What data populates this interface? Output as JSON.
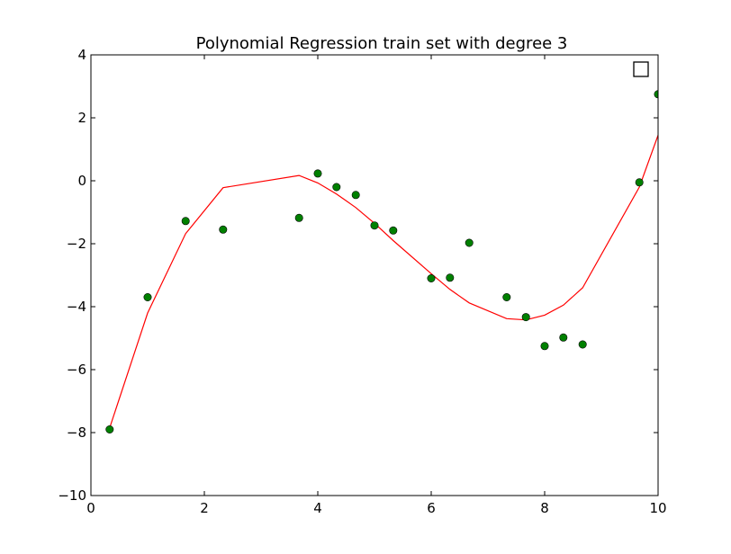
{
  "chart_data": {
    "type": "scatter",
    "title": "Polynomial Regression train set with degree 3",
    "xlabel": "",
    "ylabel": "",
    "xlim": [
      0,
      10
    ],
    "ylim": [
      -10,
      4
    ],
    "xticks": [
      0,
      2,
      4,
      6,
      8,
      10
    ],
    "xtick_labels": [
      "0",
      "2",
      "4",
      "6",
      "8",
      "10"
    ],
    "yticks": [
      -10,
      -8,
      -6,
      -4,
      -2,
      0,
      2,
      4
    ],
    "ytick_labels": [
      "−10",
      "−8",
      "−6",
      "−4",
      "−2",
      "0",
      "2",
      "4"
    ],
    "grid": false,
    "legend": {
      "placement": "upper-right",
      "entries": []
    },
    "series": [
      {
        "kind": "points",
        "color": "#008000",
        "x": [
          0.33,
          1.0,
          1.67,
          2.33,
          3.67,
          4.0,
          4.33,
          4.67,
          5.0,
          5.33,
          6.0,
          6.33,
          6.67,
          7.33,
          7.67,
          8.0,
          8.33,
          8.67,
          9.67,
          10.0
        ],
        "y": [
          -7.9,
          -3.7,
          -1.28,
          -1.55,
          -1.18,
          0.23,
          -0.2,
          -0.45,
          -1.42,
          -1.58,
          -3.1,
          -3.08,
          -1.97,
          -3.7,
          -4.33,
          -5.25,
          -4.98,
          -5.2,
          -0.05,
          2.75
        ]
      },
      {
        "kind": "line",
        "color": "#ff0000",
        "x": [
          0.33,
          1.0,
          1.67,
          2.33,
          3.67,
          4.0,
          4.33,
          4.67,
          5.0,
          5.33,
          6.0,
          6.33,
          6.67,
          7.33,
          7.67,
          8.0,
          8.33,
          8.67,
          9.67,
          10.0
        ],
        "y": [
          -7.85,
          -4.2,
          -1.68,
          -0.22,
          0.17,
          -0.07,
          -0.42,
          -0.85,
          -1.35,
          -1.9,
          -2.95,
          -3.45,
          -3.88,
          -4.38,
          -4.42,
          -4.27,
          -3.95,
          -3.4,
          -0.2,
          1.45
        ]
      }
    ]
  }
}
